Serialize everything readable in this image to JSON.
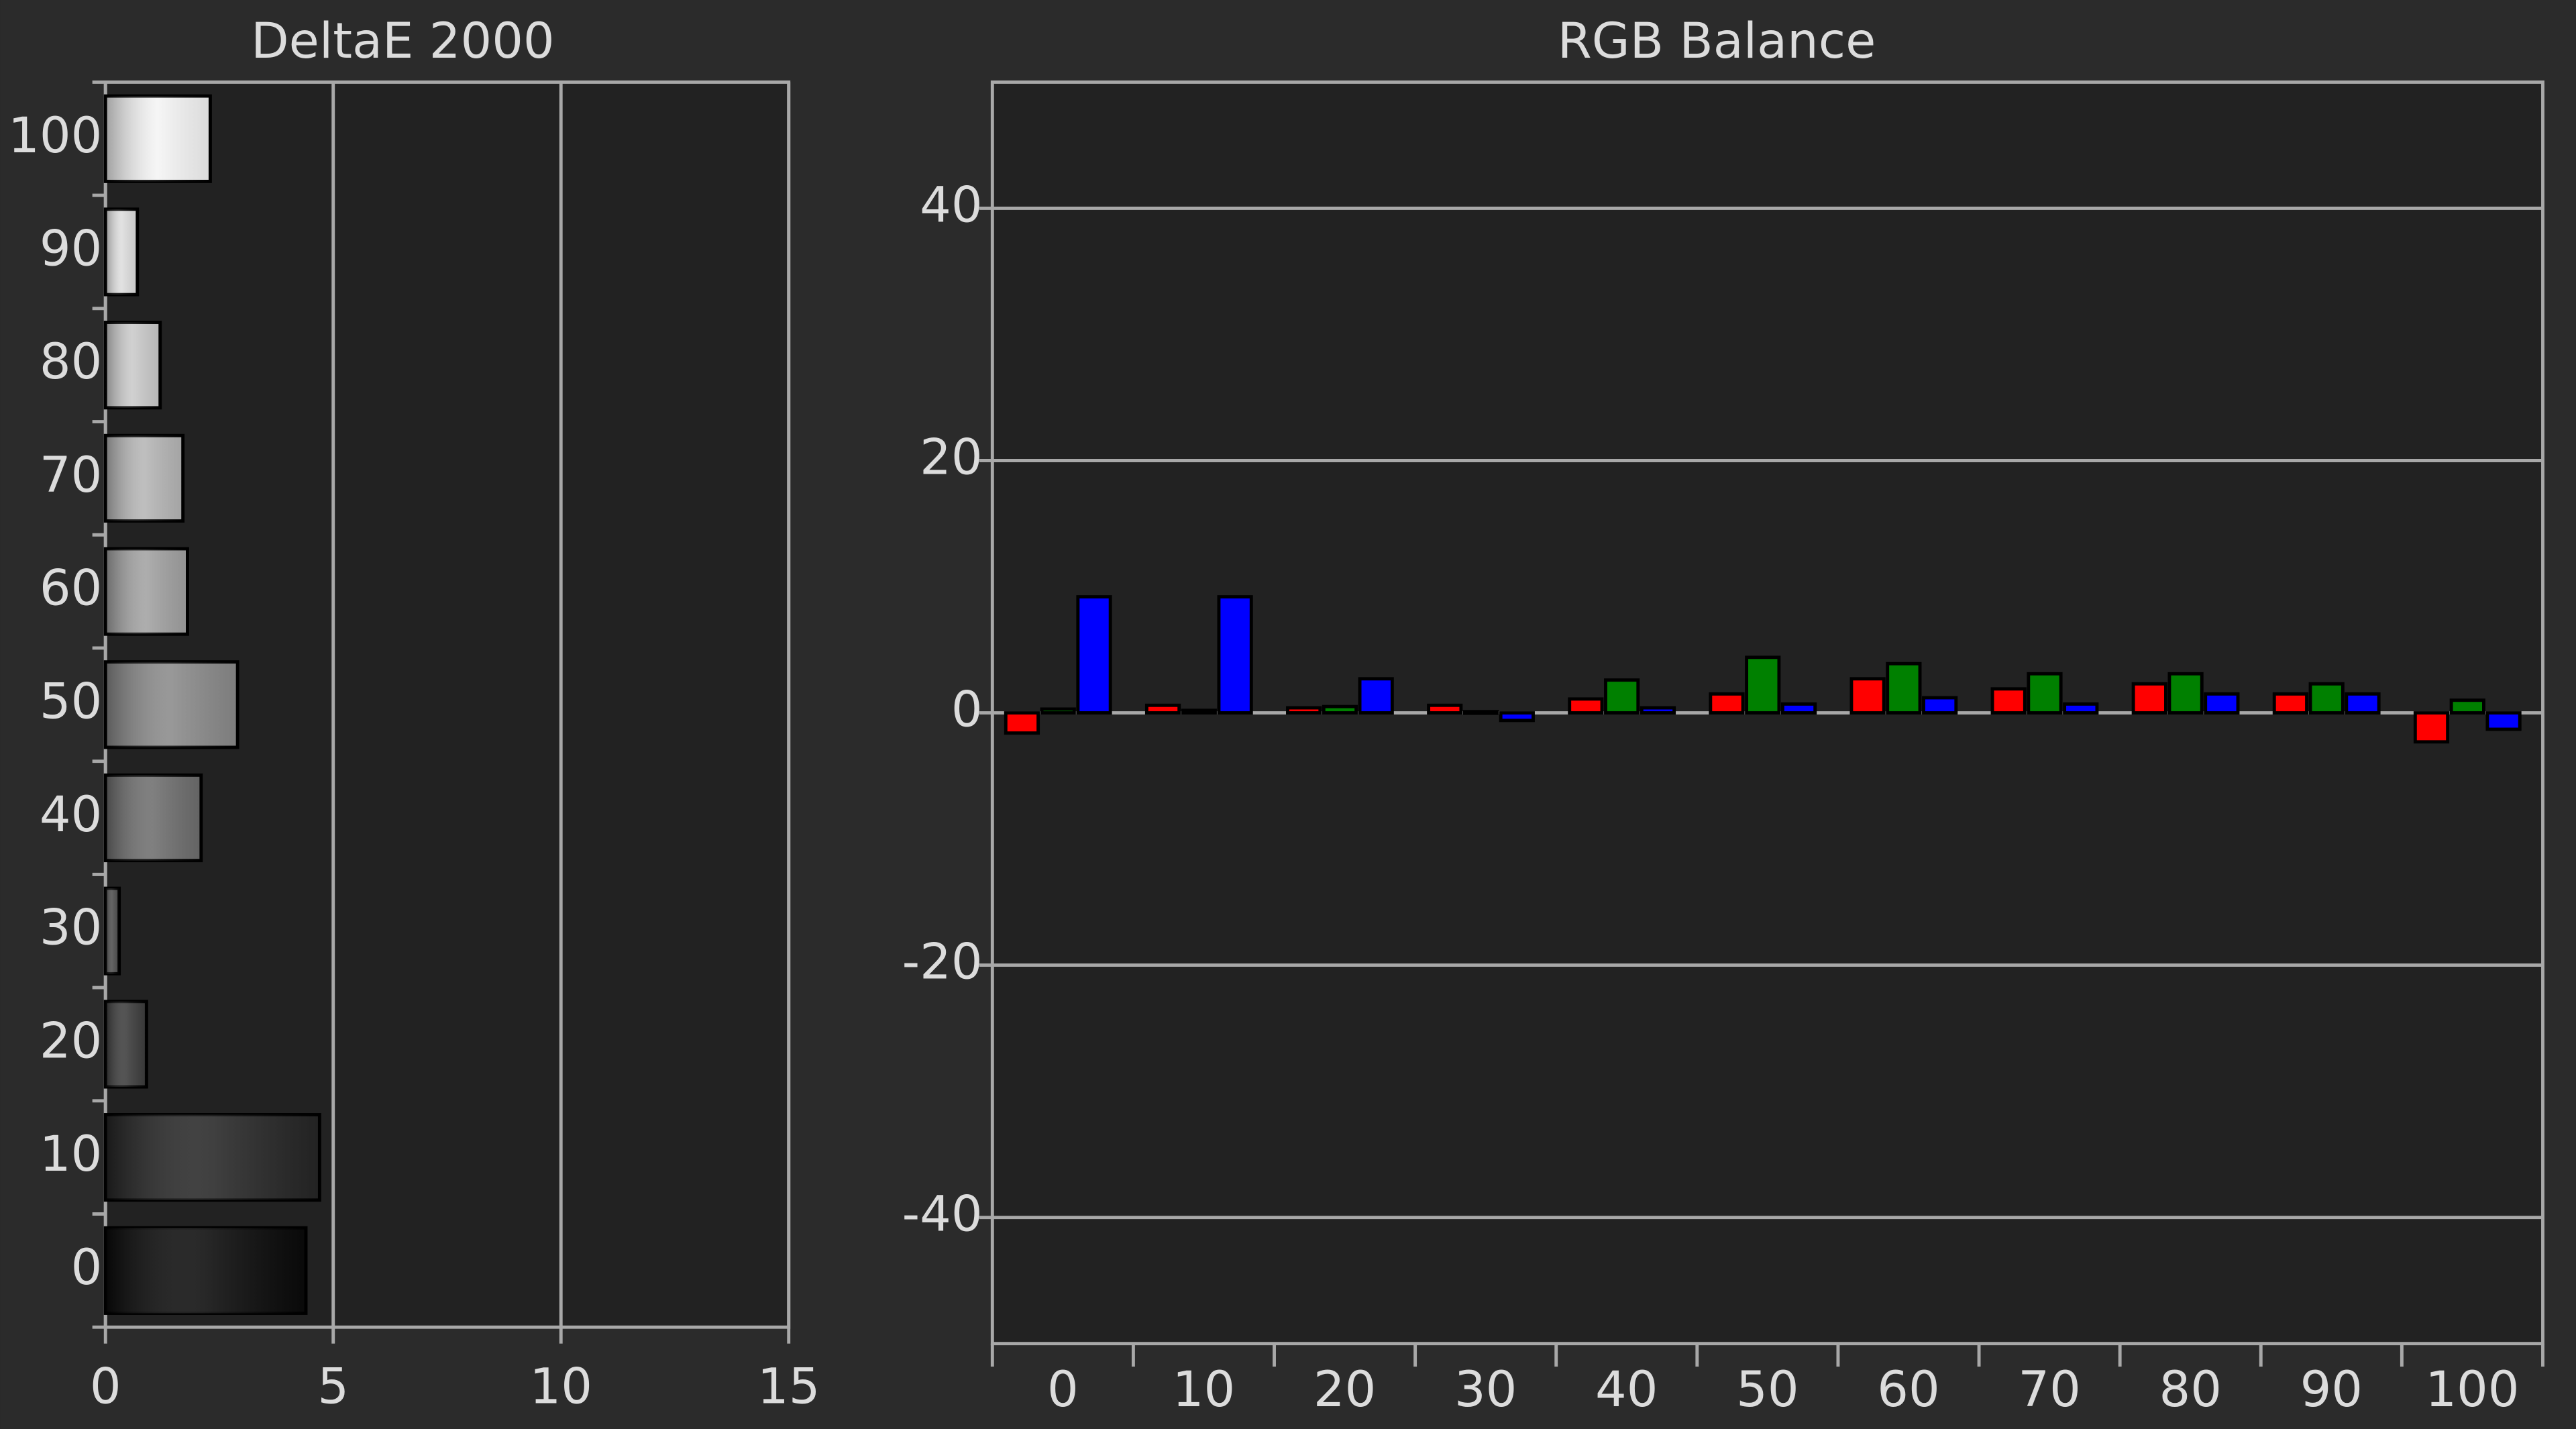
{
  "chart_data": [
    {
      "type": "hbar",
      "title": "DeltaE 2000",
      "categories": [
        "0",
        "10",
        "20",
        "30",
        "40",
        "50",
        "60",
        "70",
        "80",
        "90",
        "100"
      ],
      "values": [
        4.4,
        4.7,
        0.9,
        0.3,
        2.1,
        2.9,
        1.8,
        1.7,
        1.2,
        0.7,
        2.3
      ],
      "colors": [
        "#0a0a0a",
        "#262626",
        "#3c3c3c",
        "#4e4e4e",
        "#6e6e6e",
        "#8a8a8a",
        "#a2a2a2",
        "#b6b6b6",
        "#cacaca",
        "#dedede",
        "#f4f4f4"
      ],
      "xlim": [
        0,
        15
      ],
      "xticks": [
        0,
        5,
        10,
        15
      ],
      "grid": true
    },
    {
      "type": "bar",
      "title": "RGB Balance",
      "categories": [
        "0",
        "10",
        "20",
        "30",
        "40",
        "50",
        "60",
        "70",
        "80",
        "90",
        "100"
      ],
      "series": [
        {
          "name": "Red",
          "color": "#ff0000",
          "values": [
            -1.6,
            0.6,
            0.4,
            0.6,
            1.1,
            1.5,
            2.7,
            1.9,
            2.3,
            1.5,
            -2.3
          ]
        },
        {
          "name": "Green",
          "color": "#008000",
          "values": [
            0.3,
            0.2,
            0.5,
            0.1,
            2.6,
            4.4,
            3.9,
            3.1,
            3.1,
            2.3,
            1.0
          ]
        },
        {
          "name": "Blue",
          "color": "#0000ff",
          "values": [
            9.2,
            9.2,
            2.7,
            -0.6,
            0.4,
            0.7,
            1.2,
            0.7,
            1.5,
            1.5,
            -1.3
          ]
        }
      ],
      "ylim": [
        -50,
        50
      ],
      "yticks": [
        -40,
        -20,
        0,
        20,
        40
      ],
      "grid": true
    }
  ]
}
